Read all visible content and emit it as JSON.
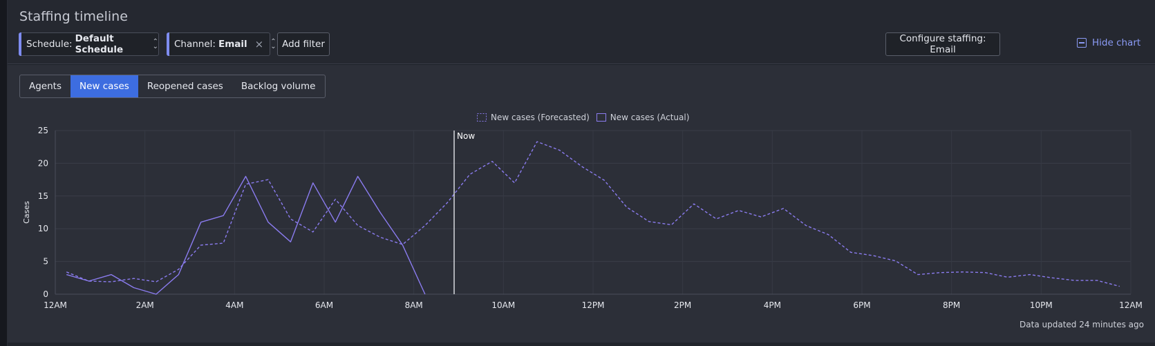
{
  "page": {
    "title": "Staffing timeline"
  },
  "filters": {
    "schedule": {
      "label": "Schedule:",
      "value": "Default Schedule"
    },
    "channel": {
      "label": "Channel:",
      "value": "Email",
      "clear": "×"
    },
    "add_filter": "Add filter"
  },
  "actions": {
    "configure": "Configure staffing: Email",
    "hide_chart": "Hide chart"
  },
  "tabs": [
    "Agents",
    "New cases",
    "Reopened cases",
    "Backlog volume"
  ],
  "active_tab": "New cases",
  "footer": {
    "updated": "Data updated 24 minutes ago"
  },
  "colors": {
    "accent": "#3d6de0",
    "series": "#8b7cf0",
    "link": "#8b9bf5"
  },
  "chart_data": {
    "type": "line",
    "xlabel": "",
    "ylabel": "Cases",
    "ylim": [
      0,
      25
    ],
    "yticks": [
      0,
      5,
      10,
      15,
      20,
      25
    ],
    "xlim_hours": [
      0,
      24
    ],
    "xticks": [
      "12AM",
      "2AM",
      "4AM",
      "6AM",
      "8AM",
      "10AM",
      "12PM",
      "2PM",
      "4PM",
      "6PM",
      "8PM",
      "10PM",
      "12AM"
    ],
    "now_label": "Now",
    "now_hour": 8.9,
    "grid": true,
    "legend_position": "top-center",
    "series": [
      {
        "name": "New cases (Forecasted)",
        "style": "dashed",
        "x": [
          0.25,
          0.75,
          1.25,
          1.75,
          2.25,
          2.75,
          3.25,
          3.75,
          4.25,
          4.75,
          5.25,
          5.75,
          6.25,
          6.75,
          7.25,
          7.75,
          8.25,
          8.75,
          9.25,
          9.75,
          10.25,
          10.75,
          11.25,
          11.75,
          12.25,
          12.75,
          13.25,
          13.75,
          14.25,
          14.75,
          15.25,
          15.75,
          16.25,
          16.75,
          17.25,
          17.75,
          18.25,
          18.75,
          19.25,
          19.75,
          20.25,
          20.75,
          21.25,
          21.75,
          22.25,
          22.75,
          23.25,
          23.75
        ],
        "values": [
          3.4,
          2.0,
          1.9,
          2.4,
          1.9,
          3.8,
          7.5,
          7.8,
          16.8,
          17.5,
          11.5,
          9.5,
          14.5,
          10.5,
          8.7,
          7.6,
          10.5,
          14.0,
          18.3,
          20.3,
          17.0,
          23.3,
          22.0,
          19.5,
          17.4,
          13.3,
          11.1,
          10.6,
          13.8,
          11.5,
          12.8,
          11.8,
          13.1,
          10.5,
          9.1,
          6.4,
          5.9,
          5.1,
          3.0,
          3.3,
          3.4,
          3.3,
          2.6,
          3.0,
          2.5,
          2.1,
          2.1,
          1.2
        ]
      },
      {
        "name": "New cases (Actual)",
        "style": "solid",
        "x": [
          0.25,
          0.75,
          1.25,
          1.75,
          2.25,
          2.75,
          3.25,
          3.75,
          4.25,
          4.75,
          5.25,
          5.75,
          6.25,
          6.75,
          7.25,
          7.75,
          8.25
        ],
        "values": [
          3.0,
          2.0,
          3.0,
          1.0,
          0.0,
          3.0,
          11.0,
          12.0,
          18.0,
          11.0,
          8.0,
          17.0,
          11.0,
          18.0,
          12.5,
          7.5,
          0.0
        ]
      }
    ]
  }
}
